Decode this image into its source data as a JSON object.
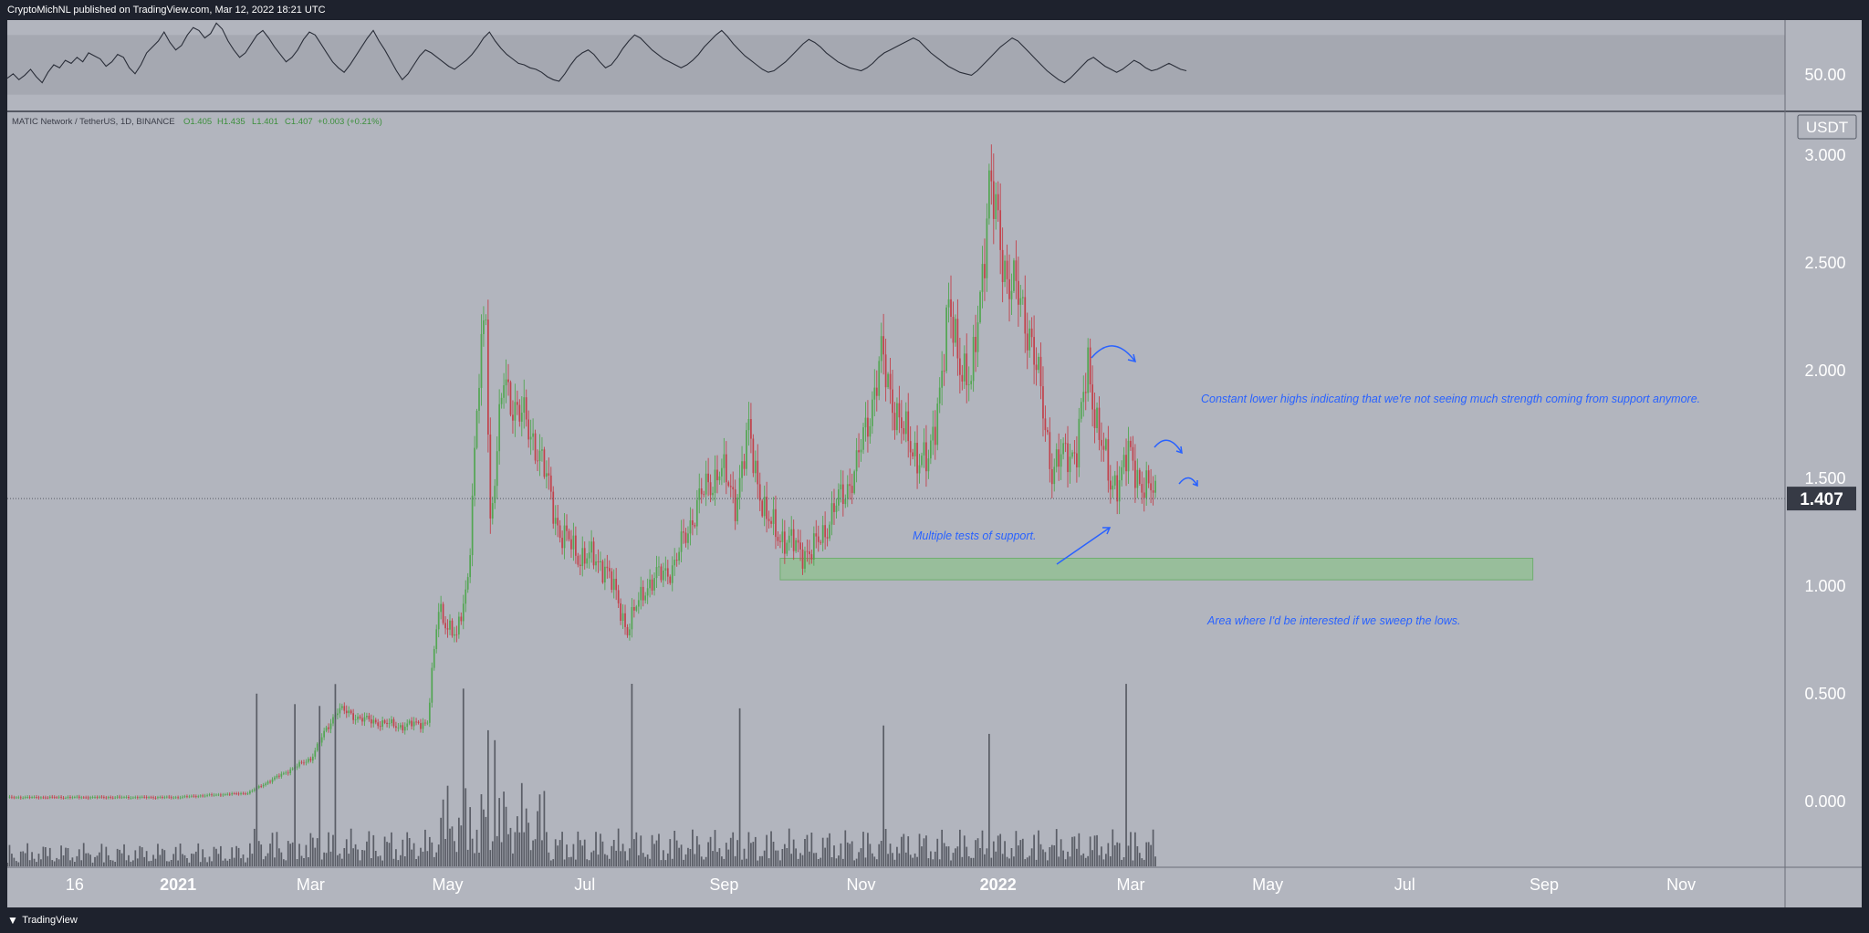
{
  "header": {
    "published_text": "CryptoMichNL published on TradingView.com, Mar 12, 2022 18:21 UTC"
  },
  "footer": {
    "brand": "TradingView",
    "logo_icon": "tradingview-logo-icon"
  },
  "colors": {
    "background": "#b2b5be",
    "up": "#53a653",
    "down": "#c2424c",
    "annotation": "#2962ff",
    "support_zone": "#8fc18f"
  },
  "chart_data": [
    {
      "type": "line",
      "title": "",
      "ylim": [
        20,
        80
      ],
      "price_label": "50.00",
      "band": [
        30,
        70
      ],
      "series": [
        {
          "values": [
            41,
            44,
            40,
            43,
            47,
            42,
            38,
            45,
            50,
            48,
            53,
            51,
            55,
            52,
            58,
            56,
            54,
            49,
            52,
            57,
            55,
            48,
            44,
            50,
            58,
            62,
            66,
            72,
            65,
            60,
            63,
            70,
            75,
            73,
            68,
            71,
            78,
            74,
            66,
            60,
            55,
            58,
            64,
            70,
            73,
            68,
            62,
            57,
            52,
            55,
            60,
            67,
            72,
            70,
            64,
            58,
            52,
            48,
            45,
            50,
            56,
            62,
            68,
            73,
            66,
            60,
            53,
            46,
            40,
            44,
            50,
            56,
            60,
            58,
            55,
            52,
            49,
            47,
            50,
            53,
            57,
            62,
            68,
            72,
            66,
            61,
            57,
            54,
            51,
            50,
            48,
            47,
            45,
            42,
            40,
            39,
            44,
            50,
            55,
            58,
            60,
            57,
            52,
            48,
            50,
            55,
            61,
            66,
            70,
            68,
            64,
            60,
            57,
            54,
            52,
            50,
            48,
            50,
            53,
            57,
            62,
            66,
            70,
            73,
            69,
            64,
            60,
            56,
            53,
            50,
            47,
            45,
            46,
            49,
            52,
            56,
            60,
            64,
            67,
            65,
            62,
            58,
            55,
            52,
            50,
            48,
            47,
            46,
            48,
            51,
            55,
            58,
            60,
            62,
            64,
            66,
            68,
            66,
            62,
            58,
            55,
            52,
            49,
            47,
            45,
            44,
            43,
            46,
            50,
            54,
            58,
            62,
            65,
            68,
            66,
            62,
            58,
            54,
            50,
            46,
            43,
            40,
            38,
            41,
            45,
            49,
            53,
            55,
            52,
            49,
            47,
            45,
            47,
            50,
            53,
            51,
            48,
            46,
            47,
            49,
            51,
            49,
            47,
            46
          ]
        }
      ]
    },
    {
      "type": "candlestick",
      "title": "MATIC Network / TetherUS, 1D, BINANCE",
      "ohlc_readout": {
        "open": "O1.405",
        "high": "H1.435",
        "low": "L1.401",
        "close": "C1.407",
        "change": "+0.003 (+0.21%)"
      },
      "currency_label": "USDT",
      "last_price": "1.407",
      "ylim": [
        -0.3,
        3.2
      ],
      "y_ticks": [
        "3.000",
        "2.500",
        "2.000",
        "1.500",
        "1.000",
        "0.500",
        "0.000"
      ],
      "y_tick_values": [
        3.0,
        2.5,
        2.0,
        1.5,
        1.0,
        0.5,
        0.0
      ],
      "x_ticks": [
        "16",
        "2021",
        "Mar",
        "May",
        "Jul",
        "Sep",
        "Nov",
        "2022",
        "Mar",
        "May",
        "Jul",
        "Sep",
        "Nov"
      ],
      "x_tick_dates": [
        "2020-11-16",
        "2021-01-01",
        "2021-03-01",
        "2021-05-01",
        "2021-07-01",
        "2021-09-01",
        "2021-11-01",
        "2022-01-01",
        "2022-03-01",
        "2022-05-01",
        "2022-07-01",
        "2022-09-01",
        "2022-11-01"
      ],
      "x_range": [
        "2020-10-17",
        "2022-12-14"
      ],
      "close_path": [
        [
          "2020-10-17",
          0.02
        ],
        [
          "2020-11-15",
          0.02
        ],
        [
          "2020-12-31",
          0.02
        ],
        [
          "2021-01-15",
          0.03
        ],
        [
          "2021-02-01",
          0.04
        ],
        [
          "2021-02-15",
          0.12
        ],
        [
          "2021-03-01",
          0.2
        ],
        [
          "2021-03-13",
          0.43
        ],
        [
          "2021-03-25",
          0.38
        ],
        [
          "2021-04-10",
          0.35
        ],
        [
          "2021-04-22",
          0.37
        ],
        [
          "2021-04-27",
          0.9
        ],
        [
          "2021-05-05",
          0.75
        ],
        [
          "2021-05-10",
          1.05
        ],
        [
          "2021-05-15",
          1.95
        ],
        [
          "2021-05-18",
          2.3
        ],
        [
          "2021-05-20",
          1.3
        ],
        [
          "2021-05-26",
          1.95
        ],
        [
          "2021-06-02",
          1.8
        ],
        [
          "2021-06-10",
          1.65
        ],
        [
          "2021-06-20",
          1.25
        ],
        [
          "2021-06-28",
          1.15
        ],
        [
          "2021-07-10",
          1.1
        ],
        [
          "2021-07-20",
          0.8
        ],
        [
          "2021-07-28",
          1.0
        ],
        [
          "2021-08-10",
          1.1
        ],
        [
          "2021-08-20",
          1.38
        ],
        [
          "2021-08-30",
          1.55
        ],
        [
          "2021-09-06",
          1.4
        ],
        [
          "2021-09-12",
          1.7
        ],
        [
          "2021-09-20",
          1.3
        ],
        [
          "2021-09-30",
          1.2
        ],
        [
          "2021-10-10",
          1.15
        ],
        [
          "2021-10-20",
          1.35
        ],
        [
          "2021-10-30",
          1.55
        ],
        [
          "2021-11-10",
          2.05
        ],
        [
          "2021-11-20",
          1.7
        ],
        [
          "2021-12-01",
          1.55
        ],
        [
          "2021-12-10",
          2.25
        ],
        [
          "2021-12-20",
          1.9
        ],
        [
          "2021-12-28",
          2.85
        ],
        [
          "2022-01-05",
          2.45
        ],
        [
          "2022-01-15",
          2.2
        ],
        [
          "2022-01-25",
          1.55
        ],
        [
          "2022-02-05",
          1.65
        ],
        [
          "2022-02-10",
          2.0
        ],
        [
          "2022-02-20",
          1.45
        ],
        [
          "2022-02-28",
          1.6
        ],
        [
          "2022-03-05",
          1.5
        ],
        [
          "2022-03-12",
          1.41
        ]
      ],
      "volume_spike_dates": [
        "2021-02-05",
        "2021-02-22",
        "2021-03-05",
        "2021-03-12",
        "2021-05-08",
        "2021-05-19",
        "2021-05-22",
        "2021-07-22",
        "2021-09-08",
        "2021-11-11",
        "2021-12-28",
        "2022-02-27"
      ],
      "support_zone": {
        "y_range": [
          1.03,
          1.13
        ],
        "x_range": [
          "2021-09-26",
          "2022-08-27"
        ]
      },
      "annotations": [
        "Constant lower highs indicating that we're not seeing much strength coming from support anymore.",
        "Multiple tests of support.",
        "Area where I'd be interested if we sweep the lows."
      ]
    }
  ]
}
